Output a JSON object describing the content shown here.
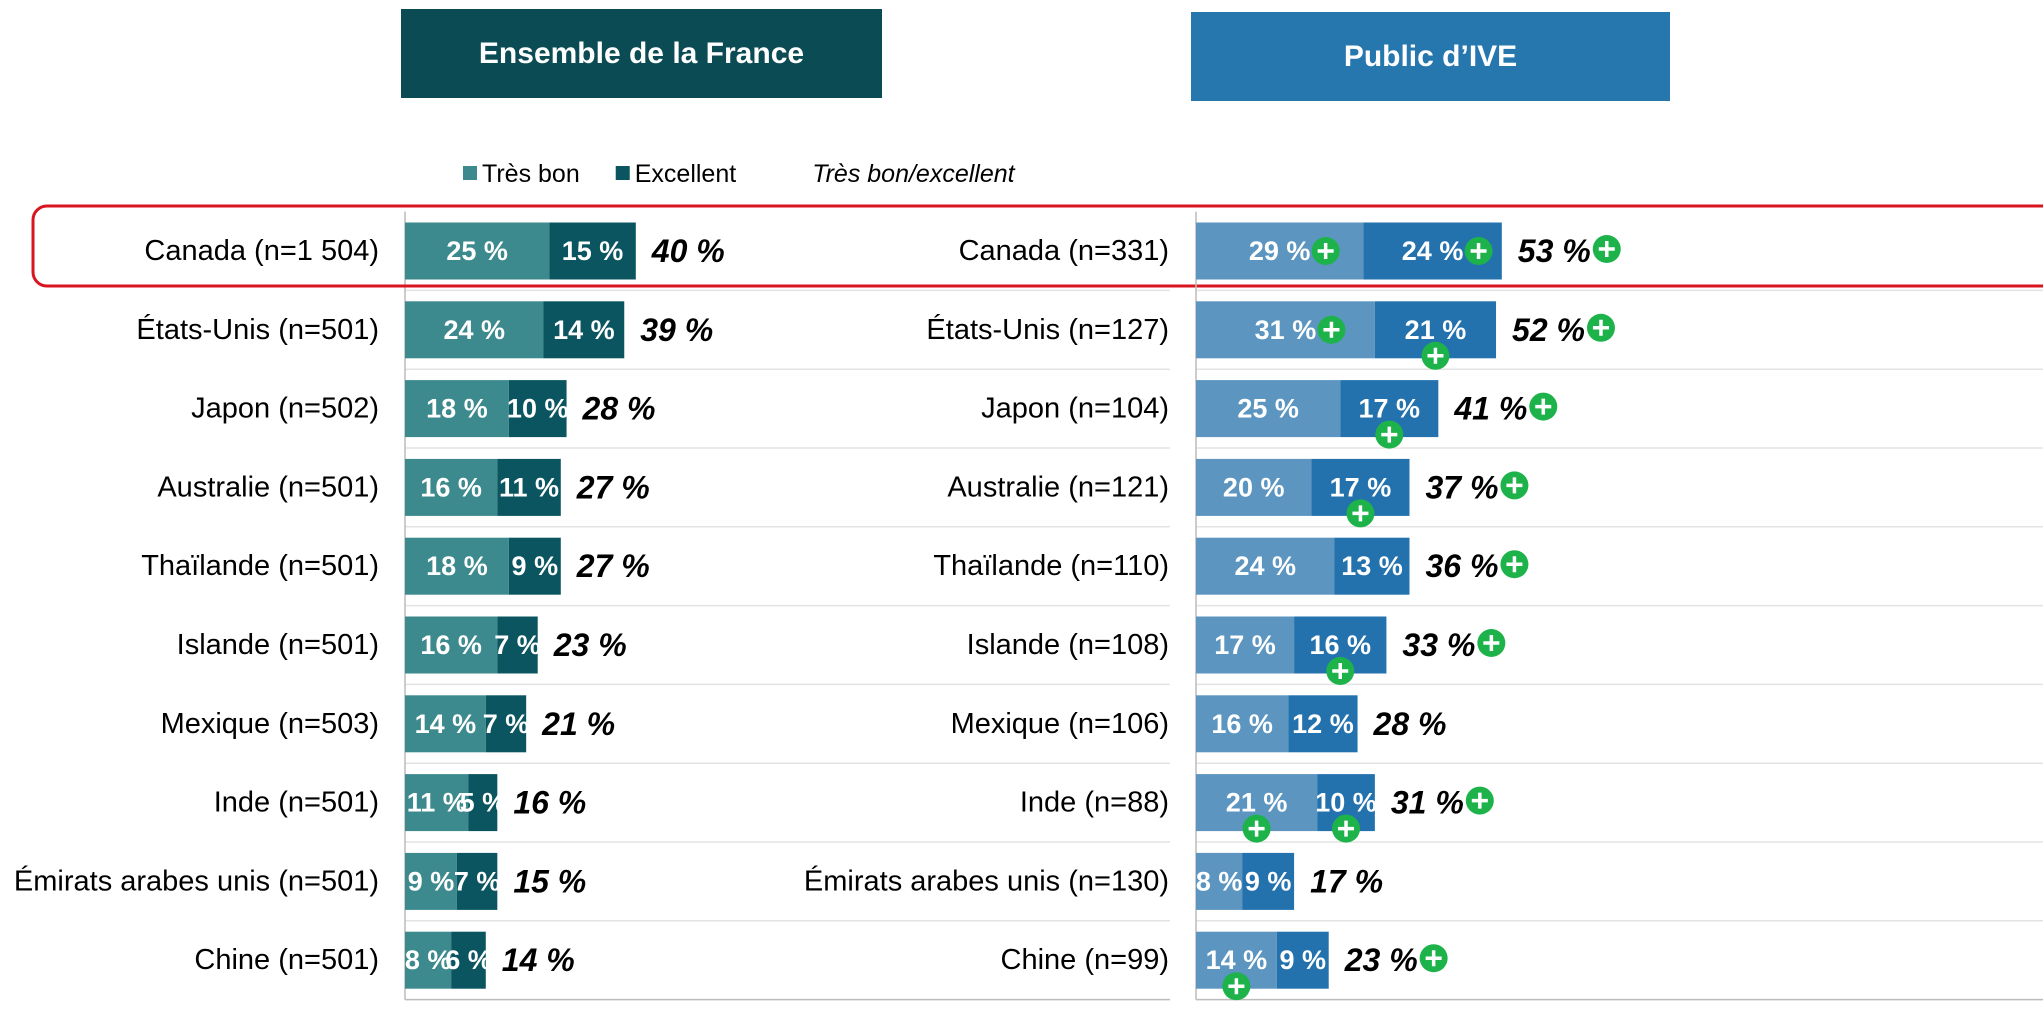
{
  "legend": [
    "Très bon",
    "Excellent",
    "Très bon/excellent"
  ],
  "chart_data": [
    {
      "type": "bar",
      "title": "Ensemble de la France",
      "xlim": [
        0,
        100
      ],
      "categories": [
        "Canada (n=1 504)",
        "États-Unis (n=501)",
        "Japon (n=502)",
        "Australie (n=501)",
        "Thaïlande (n=501)",
        "Islande (n=501)",
        "Mexique (n=503)",
        "Inde (n=501)",
        "Émirats arabes unis (n=501)",
        "Chine (n=501)"
      ],
      "series": [
        {
          "name": "Très bon",
          "color": "#3d8a8e",
          "values": [
            25,
            24,
            18,
            16,
            18,
            16,
            14,
            11,
            9,
            8
          ],
          "value_labels": [
            "25 %",
            "24 %",
            "18 %",
            "16 %",
            "18 %",
            "16 %",
            "14 %",
            "11 %",
            "9 %",
            "8 %"
          ]
        },
        {
          "name": "Excellent",
          "color": "#0b5560",
          "values": [
            15,
            14,
            10,
            11,
            9,
            7,
            7,
            5,
            7,
            6
          ],
          "value_labels": [
            "15 %",
            "14 %",
            "10 %",
            "11 %",
            "9 %",
            "7 %",
            "7 %",
            "5 %",
            "7 %",
            "6 %"
          ]
        }
      ],
      "totals": {
        "values": [
          40,
          39,
          28,
          27,
          27,
          23,
          21,
          16,
          15,
          14
        ],
        "value_labels": [
          "40 %",
          "39 %",
          "28 %",
          "27 %",
          "27 %",
          "23 %",
          "21 %",
          "16 %",
          "15 %",
          "14 %"
        ]
      },
      "header_color": "#0b4c54",
      "highlight_row": 0
    },
    {
      "type": "bar",
      "title": "Public d’IVE",
      "xlim": [
        0,
        100
      ],
      "categories": [
        "Canada (n=331)",
        "États-Unis (n=127)",
        "Japon (n=104)",
        "Australie (n=121)",
        "Thaïlande (n=110)",
        "Islande (n=108)",
        "Mexique (n=106)",
        "Inde (n=88)",
        "Émirats arabes unis (n=130)",
        "Chine (n=99)"
      ],
      "series": [
        {
          "color": "#5b95c0",
          "values": [
            29,
            31,
            25,
            20,
            24,
            17,
            16,
            21,
            8,
            14
          ],
          "value_labels": [
            "29 %",
            "31 %",
            "25 %",
            "20 %",
            "24 %",
            "17 %",
            "16 %",
            "21 %",
            "8 %",
            "14 %"
          ],
          "significant": [
            true,
            true,
            false,
            false,
            false,
            false,
            false,
            true,
            false,
            true
          ]
        },
        {
          "color": "#2372ad",
          "values": [
            24,
            21,
            17,
            17,
            13,
            16,
            12,
            10,
            9,
            9
          ],
          "value_labels": [
            "24 %",
            "21 %",
            "17 %",
            "17 %",
            "13 %",
            "16 %",
            "12 %",
            "10 %",
            "9 %",
            "9 %"
          ],
          "significant": [
            true,
            true,
            true,
            true,
            false,
            true,
            false,
            true,
            false,
            false
          ]
        }
      ],
      "totals": {
        "values": [
          53,
          52,
          41,
          37,
          36,
          33,
          28,
          31,
          17,
          23
        ],
        "value_labels": [
          "53 %",
          "52 %",
          "41 %",
          "37 %",
          "36 %",
          "33 %",
          "28 %",
          "31 %",
          "17 %",
          "23 %"
        ],
        "significant": [
          true,
          true,
          true,
          true,
          true,
          true,
          false,
          true,
          false,
          true
        ]
      },
      "header_color": "#2577ae"
    }
  ]
}
